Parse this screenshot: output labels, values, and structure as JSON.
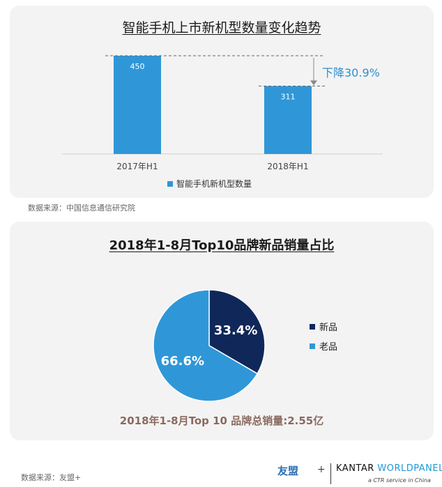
{
  "chart_data": [
    {
      "type": "bar",
      "title": "智能手机上市新机型数量变化趋势",
      "categories": [
        "2017年H1",
        "2018年H1"
      ],
      "series": [
        {
          "name": "智能手机新机型数量",
          "values": [
            450,
            311
          ]
        }
      ],
      "ylim": [
        0,
        450
      ],
      "annotation": "下降30.9%",
      "grid": false,
      "legend": "bottom",
      "colors": {
        "bar": "#2f97d8",
        "annotation": "#2f8fd0",
        "bar_label": "#ffffff"
      }
    },
    {
      "type": "pie",
      "title": "2018年1-8月Top10品牌新品销量占比",
      "labels": [
        "新品",
        "老品"
      ],
      "values": [
        33.4,
        66.6
      ],
      "value_labels": [
        "33.4%",
        "66.6%"
      ],
      "legend": "right",
      "footer": "2018年1-8月Top 10 品牌总销量:2.55亿",
      "colors": {
        "新品": "#10275a",
        "老品": "#2f97d8",
        "footer": "#8a6a60"
      }
    }
  ],
  "sources": [
    "数据来源：中国信息通信研究院",
    "数据来源：友盟+"
  ],
  "logos": {
    "youmeng": "友盟",
    "plus": "+",
    "kantar_left": "KANTAR ",
    "kantar_right": "WORLDPANEL",
    "ctr_tagline": "a CTR service in China"
  }
}
